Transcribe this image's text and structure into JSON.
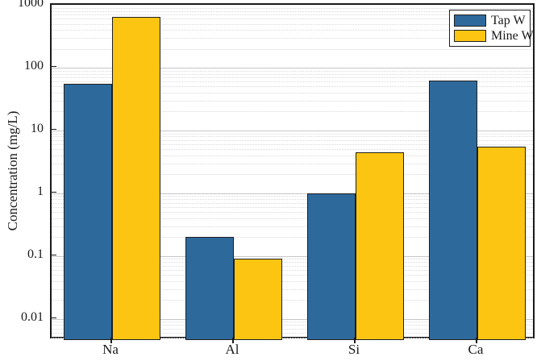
{
  "chart_data": {
    "type": "bar",
    "yscale": "log",
    "title": "",
    "xlabel": "",
    "ylabel": "Concentration (mg/L)",
    "categories": [
      "Na",
      "Al",
      "Si",
      "Ca"
    ],
    "series": [
      {
        "name": "Tap W",
        "color": "#2E699C",
        "values": [
          55,
          0.2,
          1.0,
          62
        ]
      },
      {
        "name": "Mine W",
        "color": "#FCC511",
        "values": [
          650,
          0.09,
          4.5,
          5.5
        ]
      }
    ],
    "ylim": [
      0.0046,
      1000
    ],
    "yticks": [
      1000,
      100,
      10,
      1,
      0.1,
      0.01
    ],
    "ytick_labels": [
      "1000",
      "100",
      "10",
      "1",
      "0.1",
      "0.01"
    ],
    "grid": {
      "major": "solid horizontal at decades",
      "minor": "dotted horizontal at log minors"
    },
    "legend_position": "top-right",
    "bar_edge_color": "#1f1f1f",
    "frame_color": "#1a1a1a"
  },
  "legend": {
    "items": [
      {
        "label": "Tap W"
      },
      {
        "label": "Mine W"
      }
    ]
  }
}
